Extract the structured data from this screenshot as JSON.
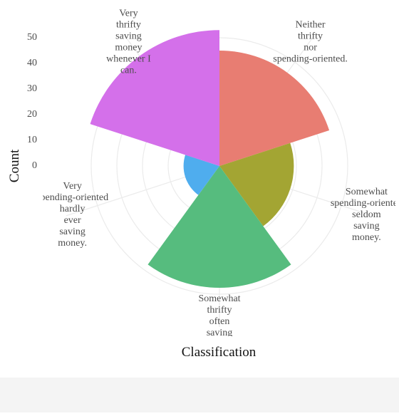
{
  "chart_data": {
    "type": "polar-bar",
    "x_label": "Classification",
    "y_label": "Count",
    "categories": [
      [
        "Neither",
        "thrifty",
        "nor",
        "spending-oriented."
      ],
      [
        "Somewhat",
        "spending-oriented",
        "seldom",
        "saving",
        "money."
      ],
      [
        "Somewhat",
        "thrifty",
        "often",
        "saving",
        "money."
      ],
      [
        "Very",
        "spending-oriented",
        "hardly",
        "ever",
        "saving",
        "money."
      ],
      [
        "Very",
        "thrifty",
        "saving",
        "money",
        "whenever I",
        "can."
      ]
    ],
    "values": [
      45,
      29,
      47.5,
      14,
      53
    ],
    "colors": [
      "#e87d72",
      "#a3a533",
      "#56bc7e",
      "#4fadee",
      "#d470ea"
    ],
    "ylim": [
      0,
      60
    ],
    "yticks": [
      0,
      10,
      20,
      30,
      40,
      50
    ],
    "grid": true
  }
}
